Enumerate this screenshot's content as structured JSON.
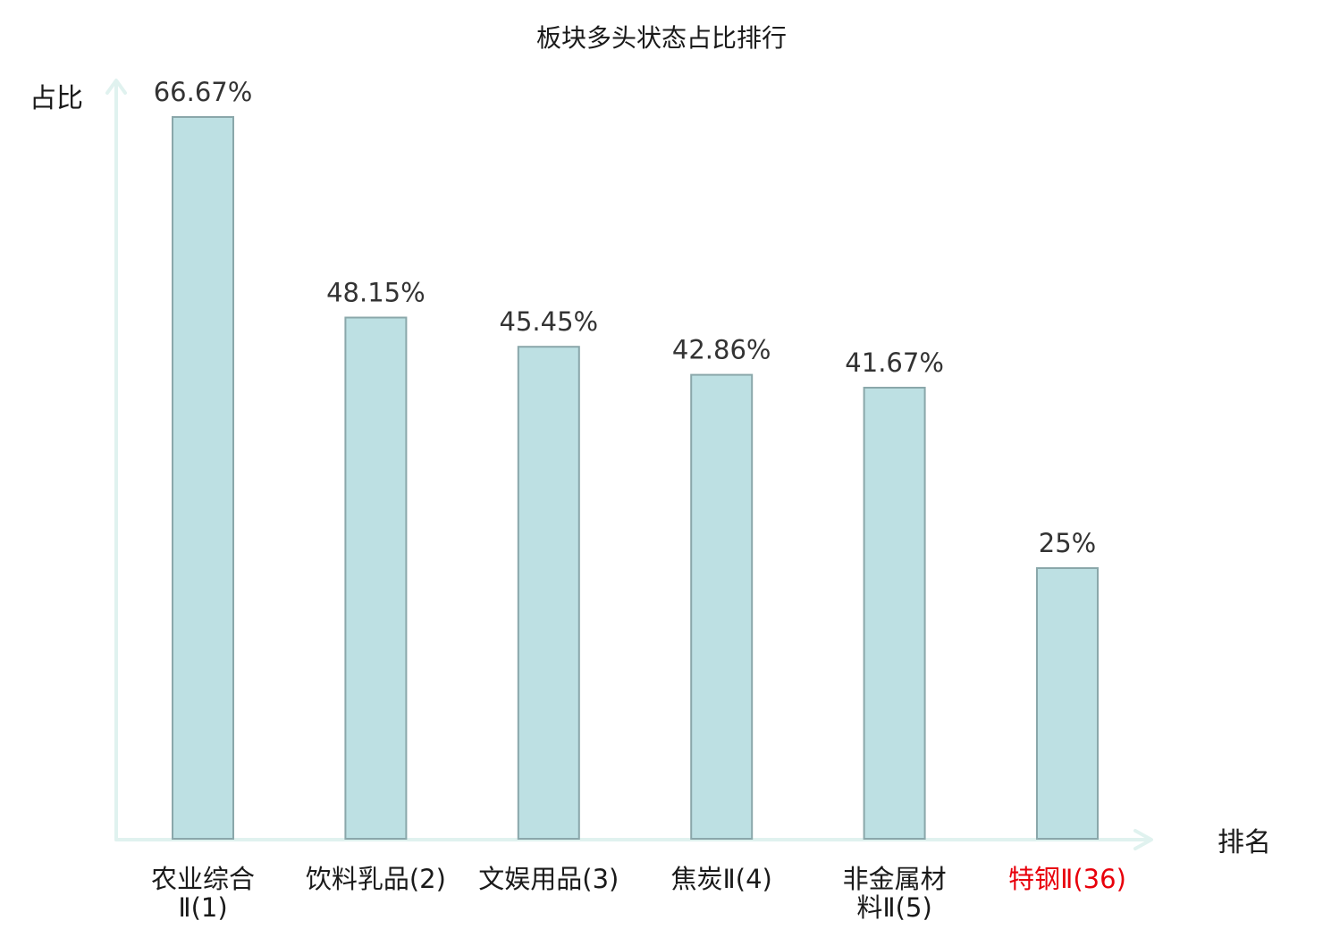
{
  "chart_data": {
    "type": "bar",
    "title": "板块多头状态占比排行",
    "ylabel": "占比",
    "xlabel": "排名",
    "categories": [
      [
        "农业综合",
        "Ⅱ(1)"
      ],
      [
        "饮料乳品(2)"
      ],
      [
        "文娱用品(3)"
      ],
      [
        "焦炭Ⅱ(4)"
      ],
      [
        "非金属材",
        "料Ⅱ(5)"
      ],
      [
        "特钢Ⅱ(36)"
      ]
    ],
    "values": [
      66.67,
      48.15,
      45.45,
      42.86,
      41.67,
      25
    ],
    "value_labels": [
      "66.67%",
      "48.15%",
      "45.45%",
      "42.86%",
      "41.67%",
      "25%"
    ],
    "highlight_index": 5,
    "ylim": [
      0,
      66.67
    ],
    "grid": false,
    "legend": "none",
    "colors": {
      "bar_fill": "#bde0e3",
      "bar_stroke": "#8aa7aa",
      "axis": "#e0f2ef",
      "text": "#1a1a1a",
      "value_text": "#333333",
      "highlight": "#e8000b",
      "category_suffix": "#555555"
    }
  }
}
